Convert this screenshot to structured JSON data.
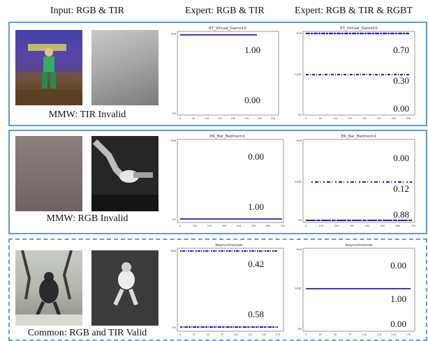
{
  "headers": {
    "input": "Input: RGB & TIR",
    "expert2": "Expert: RGB & TIR",
    "expert3": "Expert: RGB & TIR & RGBT"
  },
  "rows": [
    {
      "caption": "MMW: TIR Invalid",
      "two_expert": {
        "title": "ET_Virtual_Game10",
        "ytick_labels": [
          "RGB",
          "TIR"
        ],
        "xtick_labels": [
          "0",
          "50",
          "100",
          "150",
          "200",
          "250",
          "300",
          "350"
        ],
        "annotations": [
          "1.00",
          "0.00"
        ]
      },
      "three_expert": {
        "title": "ET_Virtual_Game10",
        "ytick_labels": [
          "RGB",
          "RGBT",
          "TIR"
        ],
        "xtick_labels": [
          "0",
          "50",
          "100",
          "150",
          "200",
          "250",
          "300",
          "350"
        ],
        "annotations": [
          "0.70",
          "0.30",
          "0.00"
        ]
      }
    },
    {
      "caption": "MMW: RGB Invalid",
      "two_expert": {
        "title": "ER_Bar_Bedroom1",
        "ytick_labels": [
          "RGB",
          "TIR"
        ],
        "xtick_labels": [
          "0",
          "100",
          "200",
          "300",
          "400",
          "500",
          "600",
          "700"
        ],
        "annotations": [
          "0.00",
          "1.00"
        ]
      },
      "three_expert": {
        "title": "ER_Bar_Bedroom1",
        "ytick_labels": [
          "RGB",
          "RGBT",
          "TIR"
        ],
        "xtick_labels": [
          "0",
          "100",
          "200",
          "300",
          "400",
          "500",
          "600",
          "700"
        ],
        "annotations": [
          "0.00",
          "0.12",
          "0.88"
        ]
      }
    },
    {
      "caption": "Common: RGB and TIR Valid",
      "two_expert": {
        "title": "boyruninsnow",
        "ytick_labels": [
          "RGB",
          "TIR"
        ],
        "xtick_labels": [
          "0",
          "25",
          "50",
          "75",
          "100",
          "125",
          "150",
          "175"
        ],
        "annotations": [
          "0.42",
          "0.58"
        ]
      },
      "three_expert": {
        "title": "boyruninsnow",
        "ytick_labels": [
          "RGB",
          "RGBT",
          "TIR"
        ],
        "xtick_labels": [
          "0",
          "25",
          "50",
          "75",
          "100",
          "125",
          "150",
          "175"
        ],
        "annotations": [
          "0.00",
          "1.00",
          "0.00"
        ]
      }
    }
  ],
  "colors": {
    "panel_border": "#5b9bd5",
    "trace": "#1f1fb4"
  }
}
